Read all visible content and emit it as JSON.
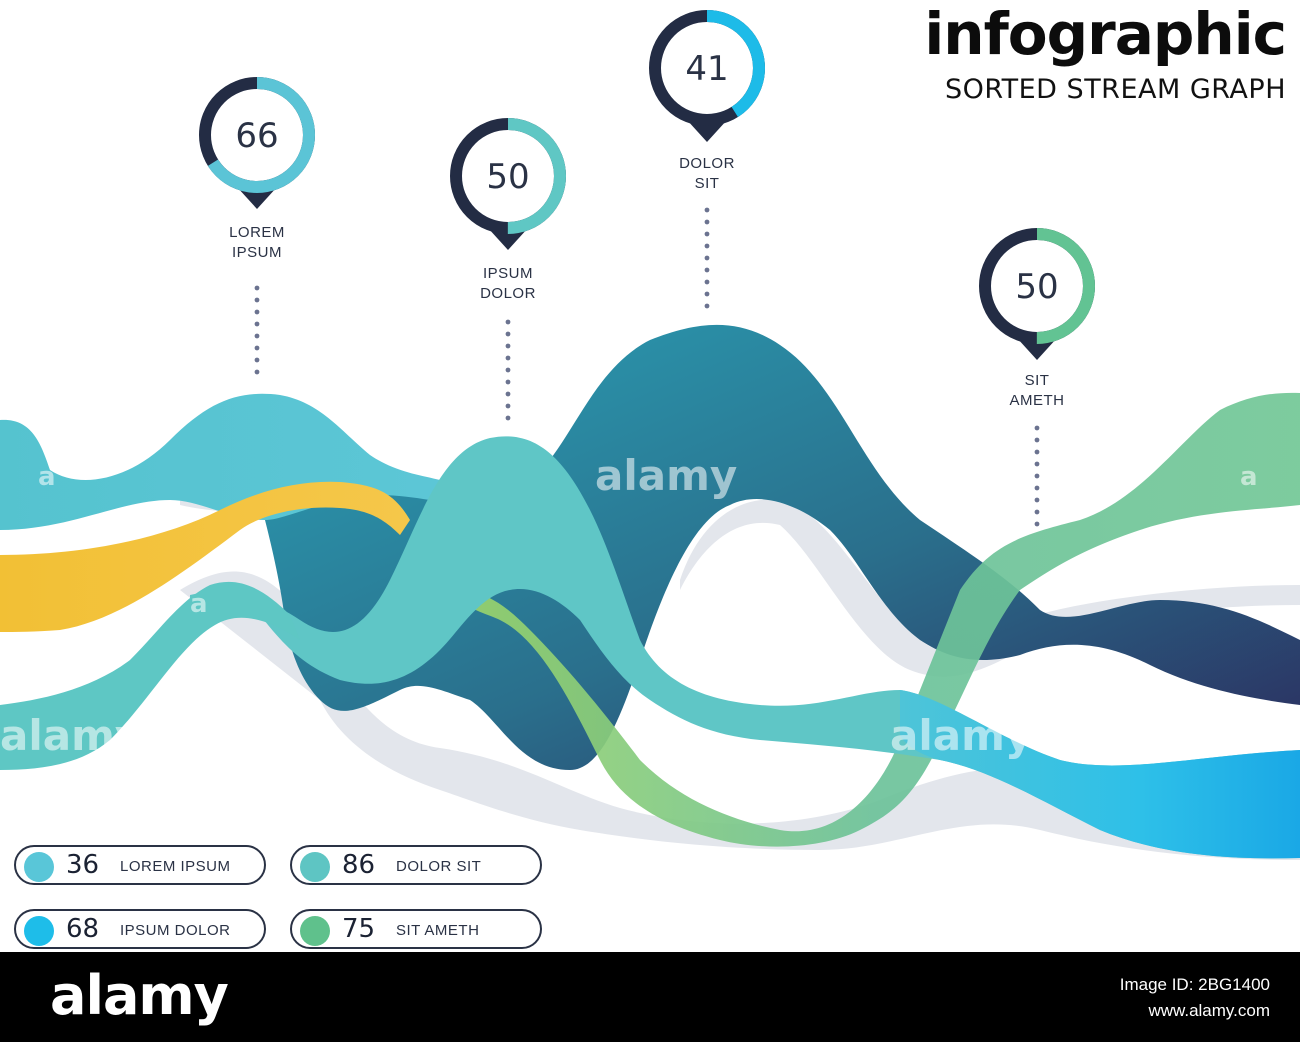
{
  "header": {
    "title": "infographic",
    "subtitle": "SORTED STREAM GRAPH"
  },
  "chart_data": {
    "type": "area",
    "style": "sorted stream graph",
    "markers": [
      {
        "value": 66,
        "label_lines": [
          "LOREM",
          "IPSUM"
        ],
        "color": "#5bc4d6"
      },
      {
        "value": 50,
        "label_lines": [
          "IPSUM",
          "DOLOR"
        ],
        "color": "#5fc7c4"
      },
      {
        "value": 41,
        "label_lines": [
          "DOLOR",
          "SIT"
        ],
        "color": "#1dbbe8"
      },
      {
        "value": 50,
        "label_lines": [
          "SIT",
          "AMETH"
        ],
        "color": "#62c393"
      }
    ],
    "legend": [
      {
        "value": "36",
        "label": "LOREM IPSUM",
        "color": "#59c6d8"
      },
      {
        "value": "86",
        "label": "DOLOR SIT",
        "color": "#5ec5c3"
      },
      {
        "value": "68",
        "label": "IPSUM DOLOR",
        "color": "#1ebde9"
      },
      {
        "value": "75",
        "label": "SIT AMETH",
        "color": "#5fc18c"
      }
    ]
  },
  "watermarks": [
    "alamy",
    "alamy",
    "alamy",
    "a",
    "a",
    "a",
    "a"
  ],
  "footer": {
    "logo": "alamy",
    "image_id": "Image ID: 2BG1400",
    "site": "www.alamy.com"
  }
}
